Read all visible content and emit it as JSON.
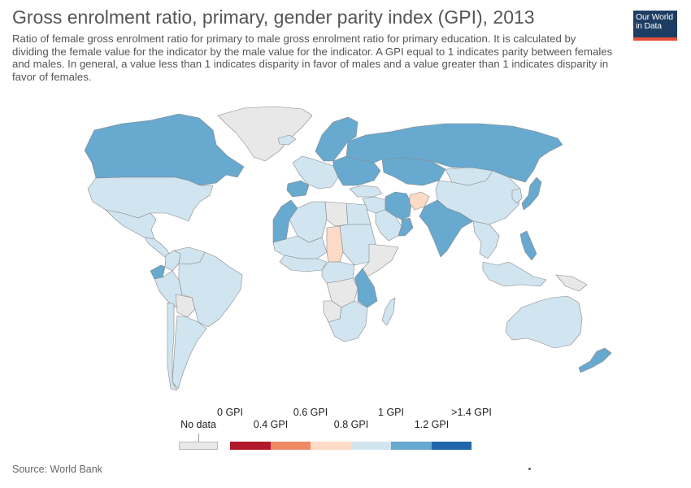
{
  "header": {
    "title": "Gross enrolment ratio, primary, gender parity index (GPI), 2013",
    "subtitle": "Ratio of female gross enrolment ratio for primary to male gross enrolment ratio for primary education. It is calculated by dividing the female value for the indicator by the male value for the indicator. A GPI equal to 1 indicates parity between females and males. In general, a value less than 1 indicates disparity in favor of males and a value greater than 1 indicates disparity in favor of females."
  },
  "logo": {
    "line1": "Our World",
    "line2": "in Data"
  },
  "legend": {
    "no_data_label": "No data",
    "no_data_color": "#e8e8e8",
    "top_labels": [
      "0 GPI",
      "0.6 GPI",
      "1 GPI",
      ">1.4 GPI"
    ],
    "bottom_labels": [
      "0.4 GPI",
      "0.8 GPI",
      "1.2 GPI"
    ],
    "bins": [
      {
        "range": "0–0.4",
        "color": "#b2182b"
      },
      {
        "range": "0.4–0.6",
        "color": "#ef8a62"
      },
      {
        "range": "0.6–0.8",
        "color": "#fddbc7"
      },
      {
        "range": "0.8–1",
        "color": "#d1e5f0"
      },
      {
        "range": "1–1.2",
        "color": "#67a9cf"
      },
      {
        "range": "1.2–1.4",
        "color": "#2166ac"
      }
    ]
  },
  "regions": [
    {
      "name": "Greenland",
      "color": "#e8e8e8"
    },
    {
      "name": "Canada",
      "color": "#67a9cf"
    },
    {
      "name": "United States",
      "color": "#d1e5f0"
    },
    {
      "name": "Mexico",
      "color": "#d1e5f0"
    },
    {
      "name": "Central America",
      "color": "#d1e5f0"
    },
    {
      "name": "Colombia",
      "color": "#d1e5f0"
    },
    {
      "name": "Venezuela",
      "color": "#d1e5f0"
    },
    {
      "name": "Ecuador",
      "color": "#67a9cf"
    },
    {
      "name": "Peru",
      "color": "#d1e5f0"
    },
    {
      "name": "Brazil",
      "color": "#d1e5f0"
    },
    {
      "name": "Bolivia",
      "color": "#e8e8e8"
    },
    {
      "name": "Argentina",
      "color": "#d1e5f0"
    },
    {
      "name": "Chile",
      "color": "#d1e5f0"
    },
    {
      "name": "Iceland",
      "color": "#d1e5f0"
    },
    {
      "name": "Scandinavia",
      "color": "#67a9cf"
    },
    {
      "name": "Western Europe",
      "color": "#d1e5f0"
    },
    {
      "name": "Iberia",
      "color": "#67a9cf"
    },
    {
      "name": "Eastern Europe",
      "color": "#67a9cf"
    },
    {
      "name": "Russia",
      "color": "#67a9cf"
    },
    {
      "name": "Kazakhstan",
      "color": "#67a9cf"
    },
    {
      "name": "Mongolia",
      "color": "#d1e5f0"
    },
    {
      "name": "China",
      "color": "#d1e5f0"
    },
    {
      "name": "Japan",
      "color": "#67a9cf"
    },
    {
      "name": "Korea",
      "color": "#d1e5f0"
    },
    {
      "name": "Turkey",
      "color": "#d1e5f0"
    },
    {
      "name": "Middle East",
      "color": "#d1e5f0"
    },
    {
      "name": "Saudi Arabia",
      "color": "#d1e5f0"
    },
    {
      "name": "Iran",
      "color": "#67a9cf"
    },
    {
      "name": "Afghanistan",
      "color": "#fddbc7"
    },
    {
      "name": "Oman",
      "color": "#67a9cf"
    },
    {
      "name": "India",
      "color": "#67a9cf"
    },
    {
      "name": "Southeast Asia",
      "color": "#d1e5f0"
    },
    {
      "name": "Philippines",
      "color": "#67a9cf"
    },
    {
      "name": "Indonesia",
      "color": "#d1e5f0"
    },
    {
      "name": "Papua New Guinea",
      "color": "#e8e8e8"
    },
    {
      "name": "Australia",
      "color": "#d1e5f0"
    },
    {
      "name": "New Zealand",
      "color": "#67a9cf"
    },
    {
      "name": "Morocco",
      "color": "#67a9cf"
    },
    {
      "name": "Algeria",
      "color": "#d1e5f0"
    },
    {
      "name": "Libya",
      "color": "#e8e8e8"
    },
    {
      "name": "Egypt",
      "color": "#d1e5f0"
    },
    {
      "name": "West Sahel",
      "color": "#d1e5f0"
    },
    {
      "name": "Chad",
      "color": "#fddbc7"
    },
    {
      "name": "Sudan",
      "color": "#d1e5f0"
    },
    {
      "name": "Horn of Africa",
      "color": "#e8e8e8"
    },
    {
      "name": "West Africa coast",
      "color": "#d1e5f0"
    },
    {
      "name": "Central Africa",
      "color": "#d1e5f0"
    },
    {
      "name": "DR Congo",
      "color": "#e8e8e8"
    },
    {
      "name": "East Africa",
      "color": "#67a9cf"
    },
    {
      "name": "Angola",
      "color": "#e8e8e8"
    },
    {
      "name": "Southern Africa",
      "color": "#d1e5f0"
    },
    {
      "name": "Madagascar",
      "color": "#d1e5f0"
    }
  ],
  "footer": {
    "source": "Source: World Bank"
  }
}
